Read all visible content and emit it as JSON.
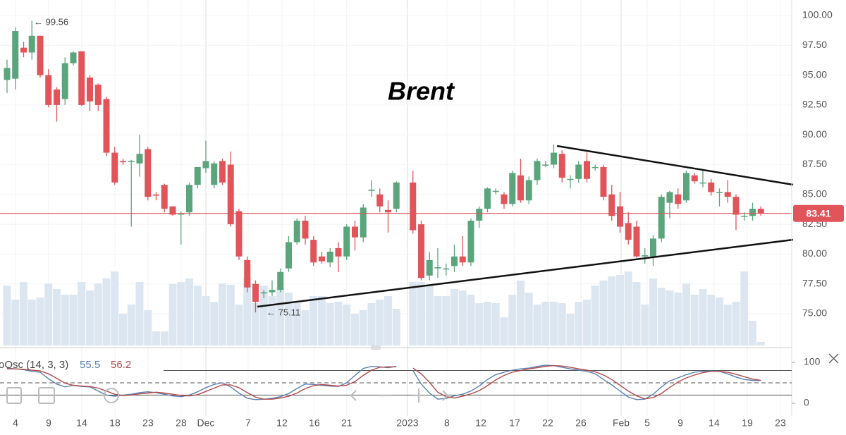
{
  "chart_data": {
    "type": "candlestick",
    "title": "Brent",
    "annotations": [
      "← 99.56",
      "← 75.11"
    ],
    "xlim": [
      -0.85,
      94.47
    ],
    "xticks": [
      {
        "value": 1.02,
        "label": "4"
      },
      {
        "value": 5.02,
        "label": "9"
      },
      {
        "value": 9.02,
        "label": "14"
      },
      {
        "value": 13.02,
        "label": "18"
      },
      {
        "value": 17.02,
        "label": "23"
      },
      {
        "value": 21.02,
        "label": "28"
      },
      {
        "value": 24.0,
        "label": "Dec"
      },
      {
        "value": 29.1,
        "label": "7"
      },
      {
        "value": 33.19,
        "label": "12"
      },
      {
        "value": 37.1,
        "label": "16"
      },
      {
        "value": 41.0,
        "label": "21"
      },
      {
        "value": 48.34,
        "label": "2023"
      },
      {
        "value": 53.1,
        "label": "8"
      },
      {
        "value": 57.2,
        "label": "12"
      },
      {
        "value": 61.28,
        "label": "17"
      },
      {
        "value": 65.28,
        "label": "22"
      },
      {
        "value": 69.28,
        "label": "26"
      },
      {
        "value": 74.13,
        "label": "Feb"
      },
      {
        "value": 77.28,
        "label": "5"
      },
      {
        "value": 81.28,
        "label": "9"
      },
      {
        "value": 85.36,
        "label": "14"
      },
      {
        "value": 89.36,
        "label": "19"
      },
      {
        "value": 93.36,
        "label": "23"
      }
    ],
    "ylim": [
      72.34,
      101.3
    ],
    "yticks": [
      {
        "value": 75,
        "label": "75.00"
      },
      {
        "value": 77.5,
        "label": "77.50"
      },
      {
        "value": 80,
        "label": "80.00"
      },
      {
        "value": 82.5,
        "label": "82.50"
      },
      {
        "value": 85,
        "label": "85.00"
      },
      {
        "value": 87.5,
        "label": "87.50"
      },
      {
        "value": 90,
        "label": "90.00"
      },
      {
        "value": 92.5,
        "label": "92.50"
      },
      {
        "value": 95,
        "label": "95.00"
      },
      {
        "value": 97.5,
        "label": "97.50"
      },
      {
        "value": 100,
        "label": "100.00"
      }
    ],
    "up_color": "#5aa57c",
    "down_color": "#e0545a",
    "last_price": 83.41,
    "open": [
      94.6,
      94.7,
      97.3,
      96.9,
      98.3,
      95.0,
      93.8,
      93.0,
      96.0,
      97.0,
      94.8,
      94.2,
      93.0,
      88.5,
      87.8,
      87.8,
      87.6,
      88.8,
      85.0,
      85.8,
      84.0,
      83.4,
      83.5,
      85.8,
      87.2,
      85.8,
      87.8,
      87.5,
      83.6,
      79.5,
      77.5,
      76.7,
      76.8,
      77.0,
      78.8,
      81.0,
      82.8,
      81.2,
      79.8,
      79.3,
      80.5,
      79.8,
      82.3,
      81.4,
      85.3,
      85.0,
      83.7,
      83.8,
      null,
      86.0,
      82.5,
      78.2,
      78.8,
      78.8,
      79.0,
      79.8,
      79.3,
      82.8,
      83.8,
      85.3,
      85.0,
      84.2,
      86.6,
      84.5,
      86.2,
      87.5,
      87.5,
      88.4,
      86.3,
      86.3,
      87.8,
      87.3,
      87.3,
      85.0,
      84.0,
      82.6,
      82.3,
      79.8,
      79.8,
      81.3,
      84.3,
      85.0,
      84.5,
      86.6,
      86.0,
      86.0,
      85.2,
      85.2,
      84.8,
      83.2,
      83.2,
      83.8
    ],
    "high": [
      96.3,
      99.0,
      97.8,
      99.56,
      98.3,
      95.5,
      94.0,
      96.5,
      97.0,
      97.0,
      95.0,
      94.3,
      93.2,
      89.0,
      88.0,
      87.9,
      90.0,
      89.0,
      85.2,
      85.9,
      84.0,
      83.6,
      86.0,
      87.3,
      89.5,
      87.8,
      88.0,
      88.6,
      83.8,
      79.8,
      77.8,
      77.0,
      77.8,
      78.8,
      81.5,
      83.0,
      83.2,
      81.5,
      80.2,
      80.5,
      81.0,
      82.5,
      82.8,
      84.2,
      86.2,
      85.5,
      84.5,
      86.1,
      null,
      87.0,
      82.8,
      80.2,
      80.5,
      79.2,
      80.8,
      81.5,
      83.0,
      84.0,
      85.6,
      85.5,
      85.2,
      87.0,
      88.0,
      86.5,
      88.0,
      87.8,
      89.2,
      88.7,
      86.6,
      87.8,
      88.5,
      87.5,
      87.5,
      85.8,
      85.2,
      83.5,
      82.8,
      80.5,
      81.6,
      85.0,
      85.3,
      85.5,
      87.0,
      86.8,
      87.0,
      86.3,
      85.5,
      86.2,
      85.0,
      83.5,
      84.3,
      84.0
    ],
    "low": [
      93.5,
      93.8,
      96.5,
      96.3,
      94.8,
      92.3,
      91.1,
      92.5,
      95.8,
      92.4,
      92.0,
      92.0,
      88.2,
      85.8,
      87.5,
      82.3,
      86.5,
      84.5,
      84.5,
      83.5,
      83.2,
      80.8,
      83.2,
      85.5,
      86.8,
      85.5,
      85.8,
      82.3,
      79.5,
      76.8,
      75.11,
      76.3,
      76.5,
      76.8,
      78.5,
      80.8,
      80.8,
      79.0,
      79.2,
      78.9,
      78.5,
      79.5,
      80.3,
      81.0,
      84.8,
      83.5,
      81.8,
      83.5,
      null,
      81.7,
      77.8,
      77.8,
      78.0,
      78.2,
      78.5,
      79.0,
      79.0,
      82.2,
      83.5,
      85.0,
      83.8,
      84.0,
      84.3,
      84.2,
      85.8,
      87.3,
      87.2,
      86.0,
      85.5,
      86.0,
      86.0,
      87.0,
      84.5,
      82.8,
      81.8,
      80.8,
      79.7,
      79.2,
      79.0,
      81.0,
      83.0,
      83.8,
      84.3,
      85.9,
      85.6,
      84.9,
      84.0,
      84.3,
      82.0,
      82.8,
      82.8,
      83.2
    ],
    "close": [
      95.6,
      98.7,
      96.9,
      98.3,
      95.0,
      92.5,
      92.5,
      96.0,
      96.9,
      92.5,
      92.8,
      92.5,
      88.5,
      86.0,
      87.7,
      87.8,
      88.4,
      84.8,
      84.9,
      83.8,
      83.3,
      83.4,
      85.8,
      87.3,
      87.8,
      87.6,
      86.0,
      82.5,
      79.8,
      77.2,
      76.0,
      76.8,
      77.0,
      78.5,
      81.0,
      82.8,
      81.3,
      79.3,
      79.4,
      80.2,
      79.8,
      82.3,
      81.4,
      83.9,
      85.4,
      84.0,
      83.5,
      86.0,
      null,
      82.0,
      78.0,
      79.5,
      78.9,
      78.8,
      79.8,
      79.3,
      82.8,
      83.8,
      85.5,
      85.3,
      84.2,
      86.8,
      84.5,
      86.2,
      87.8,
      87.5,
      88.5,
      86.4,
      86.3,
      87.5,
      86.3,
      87.3,
      84.8,
      83.2,
      82.3,
      81.2,
      79.8,
      79.9,
      81.3,
      84.8,
      85.2,
      84.2,
      86.8,
      86.1,
      86.0,
      85.2,
      85.2,
      84.8,
      83.3,
      83.2,
      83.8,
      83.41
    ],
    "volume": {
      "color": "#dce6f0",
      "ylim": [
        0,
        150
      ],
      "values": [
        85,
        65,
        90,
        65,
        68,
        88,
        80,
        72,
        72,
        90,
        78,
        88,
        95,
        105,
        45,
        58,
        90,
        50,
        20,
        20,
        87,
        90,
        95,
        85,
        70,
        62,
        88,
        86,
        58,
        96,
        60,
        85,
        70,
        82,
        75,
        60,
        50,
        70,
        70,
        60,
        62,
        58,
        45,
        50,
        60,
        65,
        70,
        52,
        null,
        90,
        90,
        85,
        70,
        70,
        80,
        78,
        72,
        60,
        62,
        60,
        40,
        72,
        92,
        75,
        58,
        62,
        62,
        60,
        45,
        62,
        65,
        85,
        92,
        98,
        100,
        105,
        90,
        58,
        95,
        82,
        78,
        75,
        88,
        72,
        80,
        72,
        68,
        58,
        62,
        105,
        35,
        5
      ]
    },
    "oscillator": {
      "name": "oOsc (14, 3, 3)",
      "ylim": [
        -31,
        124
      ],
      "yticks": [
        0,
        100
      ],
      "levels": [
        20,
        50,
        80
      ],
      "series": [
        {
          "color": "#5a7fb0",
          "values": [
            86,
            84,
            82,
            78,
            76,
            60,
            47,
            40,
            44,
            41,
            40,
            30,
            20,
            17,
            20,
            22,
            26,
            28,
            26,
            22,
            18,
            16,
            20,
            28,
            38,
            46,
            50,
            40,
            25,
            12,
            9,
            10,
            12,
            16,
            24,
            36,
            47,
            46,
            44,
            42,
            41,
            50,
            68,
            85,
            90,
            89,
            87,
            90,
            null,
            80,
            47,
            25,
            10,
            12,
            18,
            22,
            30,
            42,
            58,
            70,
            76,
            81,
            84,
            86,
            90,
            93,
            92,
            88,
            84,
            81,
            78,
            72,
            58,
            45,
            30,
            15,
            9,
            10,
            22,
            40,
            55,
            62,
            70,
            76,
            78,
            79,
            78,
            72,
            64,
            58,
            56,
            55.5
          ]
        },
        {
          "color": "#b04a4a",
          "values": [
            84,
            84,
            83,
            81,
            79,
            72,
            61,
            49,
            44,
            42,
            41,
            37,
            30,
            22,
            19,
            20,
            23,
            25,
            27,
            25,
            22,
            19,
            18,
            21,
            29,
            37,
            45,
            45,
            38,
            26,
            15,
            10,
            10,
            13,
            17,
            25,
            36,
            43,
            46,
            44,
            42,
            44,
            53,
            68,
            81,
            88,
            89,
            89,
            null,
            86,
            72,
            51,
            27,
            16,
            13,
            17,
            23,
            31,
            43,
            57,
            68,
            76,
            80,
            84,
            87,
            90,
            92,
            91,
            88,
            84,
            81,
            77,
            69,
            58,
            44,
            30,
            18,
            11,
            14,
            24,
            39,
            52,
            62,
            69,
            75,
            78,
            78,
            76,
            71,
            65,
            59,
            56.2
          ]
        }
      ]
    }
  }
}
